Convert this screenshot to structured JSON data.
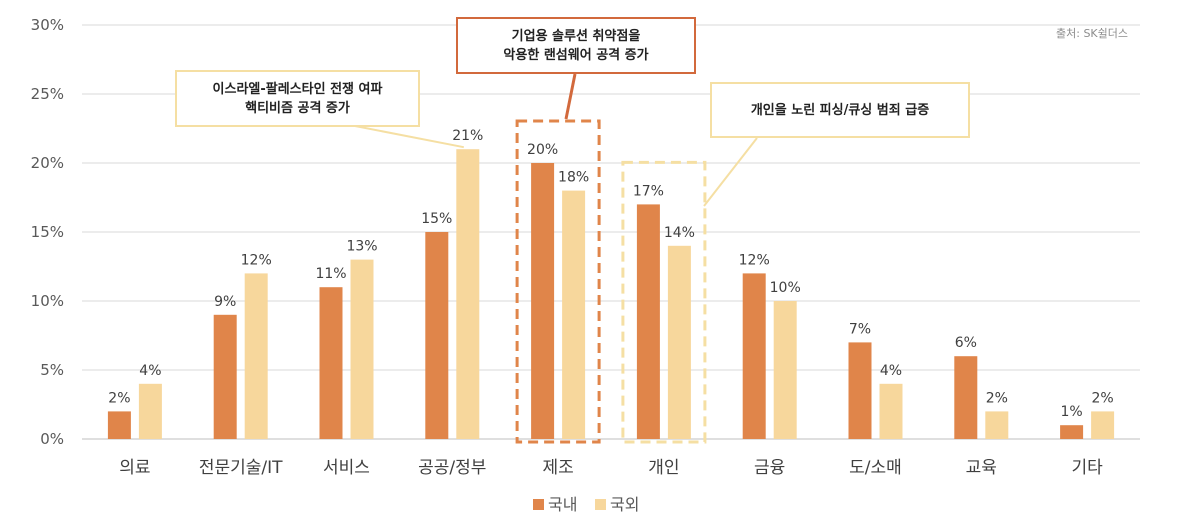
{
  "chart_data": {
    "type": "bar",
    "categories": [
      "의료",
      "전문기술/IT",
      "서비스",
      "공공/정부",
      "제조",
      "개인",
      "금융",
      "도/소매",
      "교육",
      "기타"
    ],
    "series": [
      {
        "name": "국내",
        "values": [
          2,
          9,
          11,
          15,
          20,
          17,
          12,
          7,
          6,
          1
        ],
        "color": "#e0854a"
      },
      {
        "name": "국외",
        "values": [
          4,
          12,
          13,
          21,
          18,
          14,
          10,
          4,
          2,
          2
        ],
        "color": "#f7d79c"
      }
    ],
    "ylim": [
      0,
      30
    ],
    "yticks": [
      "0%",
      "5%",
      "10%",
      "15%",
      "20%",
      "25%",
      "30%"
    ],
    "source": "출처: SK쉴더스",
    "legend_position": "bottom",
    "highlight_box_colors": {
      "제조": "#e0854a",
      "개인": "#f5dfa3"
    }
  },
  "callouts": {
    "israel": {
      "line1": "이스라엘-팔레스타인 전쟁 여파",
      "line2": "핵티비즘 공격 증가"
    },
    "enterprise": {
      "line1": "기업용 솔루션 취약점을",
      "line2": "악용한 랜섬웨어 공격 증가"
    },
    "personal": {
      "line1": "개인을 노린 피싱/큐싱 범죄 급증"
    }
  }
}
